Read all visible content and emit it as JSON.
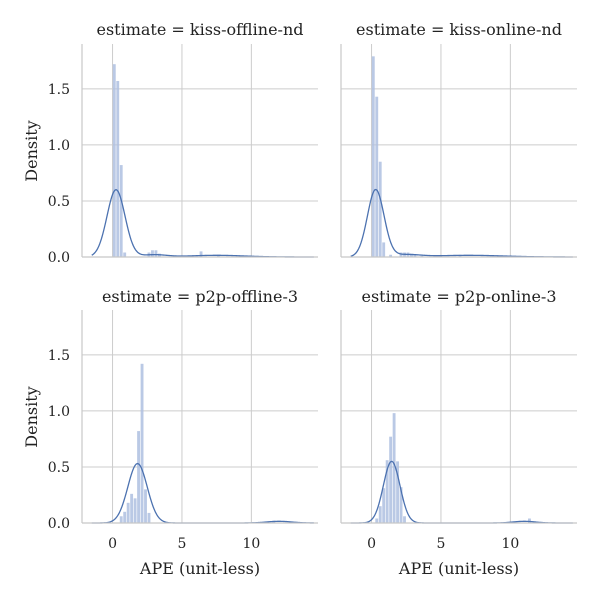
{
  "chart_data": {
    "type": "histogram-kde-facets",
    "xlabel": "APE (unit-less)",
    "ylabel": "Density",
    "xlim": [
      -2.2,
      14.8
    ],
    "ylim": [
      0,
      1.9
    ],
    "xticks": [
      0,
      5,
      10
    ],
    "yticks": [
      0.0,
      0.5,
      1.0,
      1.5
    ],
    "xtick_labels": [
      "0",
      "5",
      "10"
    ],
    "ytick_labels": [
      "0.0",
      "0.5",
      "1.0",
      "1.5"
    ],
    "grid": true,
    "colors": {
      "bar": "#aec0e0",
      "kde": "#4c72b0",
      "grid": "#cccccc",
      "axis": "#c8c8c8"
    },
    "facets": [
      {
        "title": "estimate = kiss-offline-nd",
        "hist": {
          "bin_width": 0.25,
          "bins": [
            [
              0.0,
              1.72
            ],
            [
              0.25,
              1.57
            ],
            [
              0.5,
              0.82
            ],
            [
              0.75,
              0.04
            ],
            [
              2.5,
              0.04
            ],
            [
              2.75,
              0.06
            ],
            [
              3.0,
              0.06
            ],
            [
              3.25,
              0.03
            ],
            [
              6.25,
              0.05
            ],
            [
              7.5,
              0.02
            ],
            [
              9.5,
              0.01
            ]
          ]
        },
        "kde": {
          "components": [
            [
              0.25,
              0.65,
              0.6
            ],
            [
              3.0,
              0.9,
              0.02
            ],
            [
              7.5,
              2.0,
              0.015
            ]
          ]
        }
      },
      {
        "title": "estimate = kiss-online-nd",
        "hist": {
          "bin_width": 0.25,
          "bins": [
            [
              0.0,
              1.79
            ],
            [
              0.25,
              1.43
            ],
            [
              0.5,
              0.85
            ],
            [
              0.75,
              0.13
            ],
            [
              1.25,
              0.02
            ],
            [
              2.0,
              0.04
            ],
            [
              2.25,
              0.04
            ],
            [
              2.5,
              0.04
            ],
            [
              2.75,
              0.03
            ],
            [
              3.0,
              0.02
            ],
            [
              3.5,
              0.01
            ],
            [
              6.25,
              0.02
            ],
            [
              8.5,
              0.01
            ]
          ]
        },
        "kde": {
          "components": [
            [
              0.3,
              0.6,
              0.6
            ],
            [
              2.5,
              1.0,
              0.02
            ],
            [
              7.0,
              2.5,
              0.015
            ]
          ]
        }
      },
      {
        "title": "estimate = p2p-offline-3",
        "hist": {
          "bin_width": 0.25,
          "bins": [
            [
              0.5,
              0.06
            ],
            [
              0.75,
              0.1
            ],
            [
              1.0,
              0.18
            ],
            [
              1.25,
              0.26
            ],
            [
              1.5,
              0.22
            ],
            [
              1.75,
              0.82
            ],
            [
              2.0,
              1.42
            ],
            [
              2.25,
              0.3
            ],
            [
              2.5,
              0.09
            ],
            [
              11.5,
              0.02
            ]
          ]
        },
        "kde": {
          "components": [
            [
              1.8,
              0.7,
              0.53
            ],
            [
              12.0,
              0.9,
              0.015
            ]
          ]
        }
      },
      {
        "title": "estimate = p2p-online-3",
        "hist": {
          "bin_width": 0.25,
          "bins": [
            [
              0.25,
              0.04
            ],
            [
              0.5,
              0.15
            ],
            [
              0.75,
              0.31
            ],
            [
              1.0,
              0.56
            ],
            [
              1.25,
              0.77
            ],
            [
              1.5,
              0.98
            ],
            [
              1.75,
              0.55
            ],
            [
              2.0,
              0.32
            ],
            [
              2.25,
              0.06
            ],
            [
              11.25,
              0.04
            ]
          ]
        },
        "kde": {
          "components": [
            [
              1.45,
              0.6,
              0.55
            ],
            [
              11.0,
              0.8,
              0.015
            ]
          ]
        }
      }
    ]
  }
}
